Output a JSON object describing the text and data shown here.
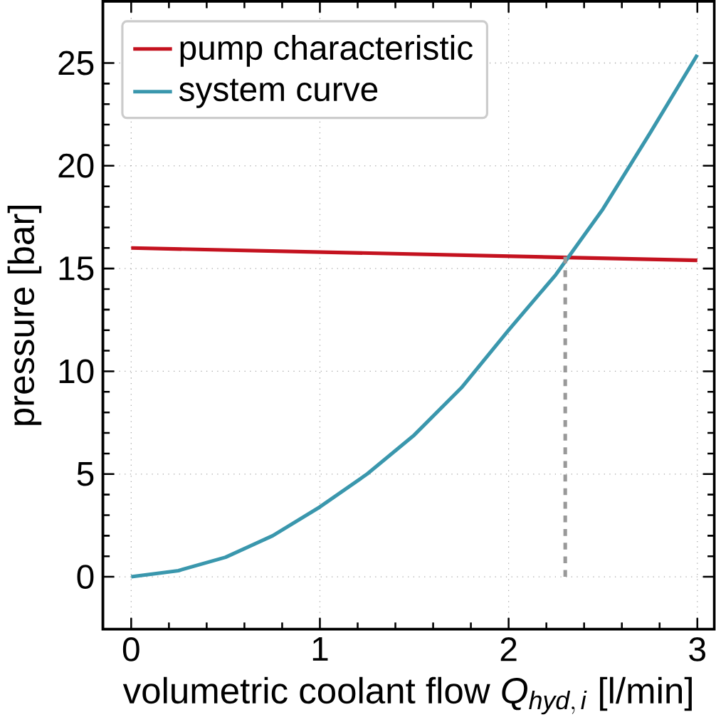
{
  "chart_data": {
    "type": "line",
    "xlabel": "\\text{volumetric coolant flow }\\mathit{Q}_{\\mathit{hyd,\\,i}}\\text{ [l/min]}",
    "ylabel": "pressure [bar]",
    "xlim": [
      -0.15,
      3.09
    ],
    "ylim": [
      -2.55,
      28
    ],
    "xticks": [
      0,
      1,
      2,
      3
    ],
    "yticks": [
      0,
      5,
      10,
      15,
      20,
      25
    ],
    "grid": true,
    "legend": "top left",
    "marker": "none",
    "series": [
      {
        "name": "pump characteristic",
        "color": "#c4121f",
        "x": [
          0,
          3
        ],
        "values": [
          16.0,
          15.4
        ]
      },
      {
        "name": "system curve",
        "color": "#3a97ad",
        "x": [
          0,
          0.25,
          0.5,
          0.75,
          1,
          1.25,
          1.5,
          1.75,
          2,
          2.25,
          2.5,
          2.75,
          3
        ],
        "values": [
          0,
          0.3,
          0.95,
          2.0,
          3.4,
          5.0,
          6.9,
          9.2,
          12.0,
          14.7,
          17.9,
          21.6,
          25.4
        ]
      },
      {
        "color": "#999999",
        "line_style": "dashed",
        "x": [
          2.3,
          2.3
        ],
        "values": [
          0,
          15.6
        ]
      }
    ]
  }
}
